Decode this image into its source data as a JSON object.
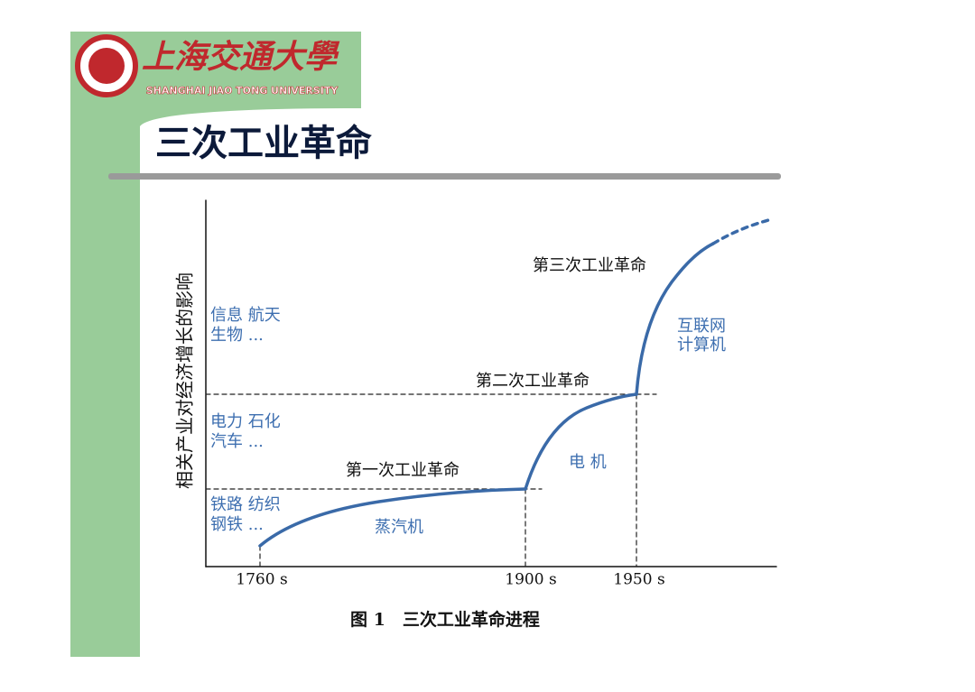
{
  "header": {
    "logo_name": "上海交通大學",
    "logo_english": "SHANGHAI JIAO TONG UNIVERSITY"
  },
  "slide": {
    "title": "三次工业革命"
  },
  "figure": {
    "y_axis_label": "相关产业对经济增长的影响",
    "x_labels": [
      "1760 s",
      "1900 s",
      "1950 s"
    ],
    "revolutions": [
      "第一次工业革命",
      "第二次工业革命",
      "第三次工业革命"
    ],
    "industries": [
      [
        "铁路 纺织",
        "钢铁 ..."
      ],
      [
        "电力 石化",
        "汽车 ..."
      ],
      [
        "信息 航天",
        "生物 ..."
      ]
    ],
    "technologies": [
      [
        "蒸汽机"
      ],
      [
        "电 机"
      ],
      [
        "互联网",
        "计算机"
      ]
    ],
    "caption": "图 1　三次工业革命进程"
  }
}
